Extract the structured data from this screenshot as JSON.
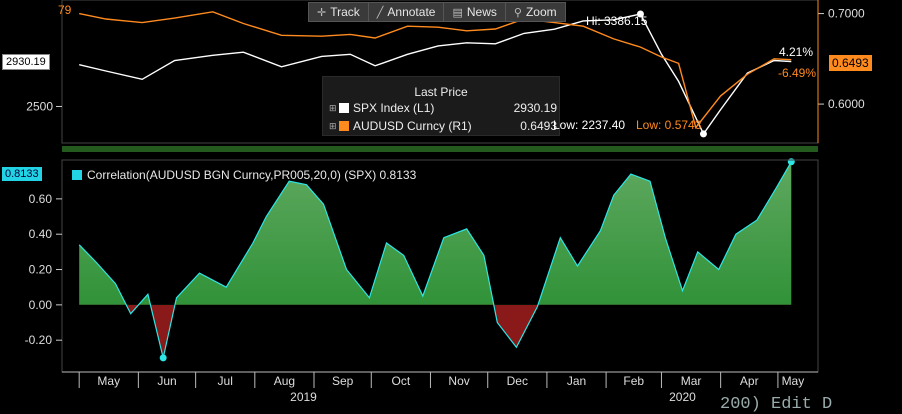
{
  "toolbar": {
    "track_label": "Track",
    "annotate_label": "Annotate",
    "news_label": "News",
    "zoom_label": "Zoom",
    "track_icon": "crosshair-icon",
    "annotate_icon": "pencil-icon",
    "news_icon": "news-icon",
    "zoom_icon": "magnifier-icon"
  },
  "upper_panel": {
    "left_axis_ticks": [
      "2500"
    ],
    "right_axis_ticks": [
      "0.7000",
      "0.6000"
    ],
    "spx_tag": "2930.19",
    "aud_tag": "0.6493",
    "aud_partial_label": "79",
    "change_spx": "4.21%",
    "change_aud": "-6.49%",
    "hi_label": "Hi: 3386.15",
    "low_spx_label": "Low: 2237.40",
    "low_aud_label": "Low: 0.5743",
    "legend": {
      "title": "Last Price",
      "rows": [
        {
          "name": "SPX Index  (L1)",
          "value": "2930.19",
          "color": "#ffffff"
        },
        {
          "name": "AUDUSD Curncy  (R1)",
          "value": "0.6493",
          "color": "#ff8a1e"
        }
      ]
    }
  },
  "lower_panel": {
    "title": "Correlation(AUDUSD BGN Curncy,PR005,20,0) (SPX) 0.8133",
    "value_tag": "0.8133",
    "line_color": "#2ee6e6",
    "positive_fill": "#1f8a2a",
    "negative_fill": "#8a1a1a"
  },
  "x_axis": {
    "months": [
      "May",
      "Jun",
      "Jul",
      "Aug",
      "Sep",
      "Oct",
      "Nov",
      "Dec",
      "Jan",
      "Feb",
      "Mar",
      "Apr",
      "May"
    ],
    "years": [
      "2019",
      "2020"
    ]
  },
  "footer_text": "200) Edit D",
  "chart_data": [
    {
      "type": "line",
      "series": [
        {
          "name": "SPX Index (L1)",
          "axis": "left",
          "color": "#ffffff",
          "x": [
            "2019-05-01",
            "2019-05-15",
            "2019-06-03",
            "2019-06-20",
            "2019-07-10",
            "2019-07-26",
            "2019-08-15",
            "2019-09-05",
            "2019-09-20",
            "2019-10-03",
            "2019-10-20",
            "2019-11-05",
            "2019-11-20",
            "2019-12-05",
            "2019-12-20",
            "2020-01-05",
            "2020-01-20",
            "2020-02-05",
            "2020-02-19",
            "2020-03-01",
            "2020-03-10",
            "2020-03-23",
            "2020-04-01",
            "2020-04-15",
            "2020-04-29",
            "2020-05-08"
          ],
          "values": [
            2900,
            2840,
            2760,
            2940,
            2990,
            3020,
            2880,
            2980,
            3000,
            2890,
            3000,
            3080,
            3110,
            3100,
            3200,
            3240,
            3320,
            3330,
            3386,
            3000,
            2740,
            2237,
            2470,
            2820,
            2940,
            2930
          ]
        },
        {
          "name": "AUDUSD Curncy (R1)",
          "axis": "right",
          "color": "#ff8a1e",
          "x": [
            "2019-05-01",
            "2019-05-15",
            "2019-06-03",
            "2019-06-20",
            "2019-07-10",
            "2019-07-26",
            "2019-08-15",
            "2019-09-05",
            "2019-09-20",
            "2019-10-03",
            "2019-10-20",
            "2019-11-05",
            "2019-11-20",
            "2019-12-05",
            "2019-12-20",
            "2020-01-05",
            "2020-01-20",
            "2020-02-05",
            "2020-02-19",
            "2020-03-01",
            "2020-03-10",
            "2020-03-19",
            "2020-04-01",
            "2020-04-15",
            "2020-04-29",
            "2020-05-08"
          ],
          "values": [
            0.7,
            0.694,
            0.69,
            0.695,
            0.702,
            0.689,
            0.676,
            0.675,
            0.677,
            0.673,
            0.686,
            0.685,
            0.681,
            0.683,
            0.694,
            0.69,
            0.686,
            0.672,
            0.663,
            0.652,
            0.645,
            0.574,
            0.609,
            0.633,
            0.65,
            0.649
          ]
        }
      ],
      "ylim_left": [
        2150,
        3520
      ],
      "ylim_right": [
        0.557,
        0.715
      ],
      "legend": "center"
    },
    {
      "type": "area",
      "series": [
        {
          "name": "Correlation(AUDUSD BGN Curncy,PR005,20,0) (SPX)",
          "x": [
            "2019-05-01",
            "2019-05-10",
            "2019-05-20",
            "2019-05-28",
            "2019-06-06",
            "2019-06-14",
            "2019-06-21",
            "2019-07-03",
            "2019-07-17",
            "2019-07-31",
            "2019-08-07",
            "2019-08-19",
            "2019-08-28",
            "2019-09-06",
            "2019-09-18",
            "2019-09-30",
            "2019-10-09",
            "2019-10-18",
            "2019-10-28",
            "2019-11-08",
            "2019-11-20",
            "2019-11-29",
            "2019-12-06",
            "2019-12-16",
            "2019-12-27",
            "2020-01-08",
            "2020-01-17",
            "2020-01-29",
            "2020-02-05",
            "2020-02-14",
            "2020-02-24",
            "2020-03-03",
            "2020-03-12",
            "2020-03-20",
            "2020-03-31",
            "2020-04-09",
            "2020-04-20",
            "2020-04-30",
            "2020-05-08"
          ],
          "values": [
            0.34,
            0.24,
            0.12,
            -0.05,
            0.06,
            -0.3,
            0.04,
            0.18,
            0.1,
            0.35,
            0.5,
            0.7,
            0.68,
            0.57,
            0.2,
            0.04,
            0.35,
            0.28,
            0.05,
            0.38,
            0.43,
            0.28,
            -0.1,
            -0.24,
            -0.01,
            0.38,
            0.22,
            0.42,
            0.62,
            0.74,
            0.7,
            0.38,
            0.08,
            0.3,
            0.2,
            0.4,
            0.48,
            0.66,
            0.81
          ]
        }
      ],
      "ylim": [
        -0.38,
        0.82
      ],
      "ticks": [
        0.6,
        0.4,
        0.2,
        0.0,
        -0.2
      ],
      "last_value": 0.8133
    }
  ]
}
